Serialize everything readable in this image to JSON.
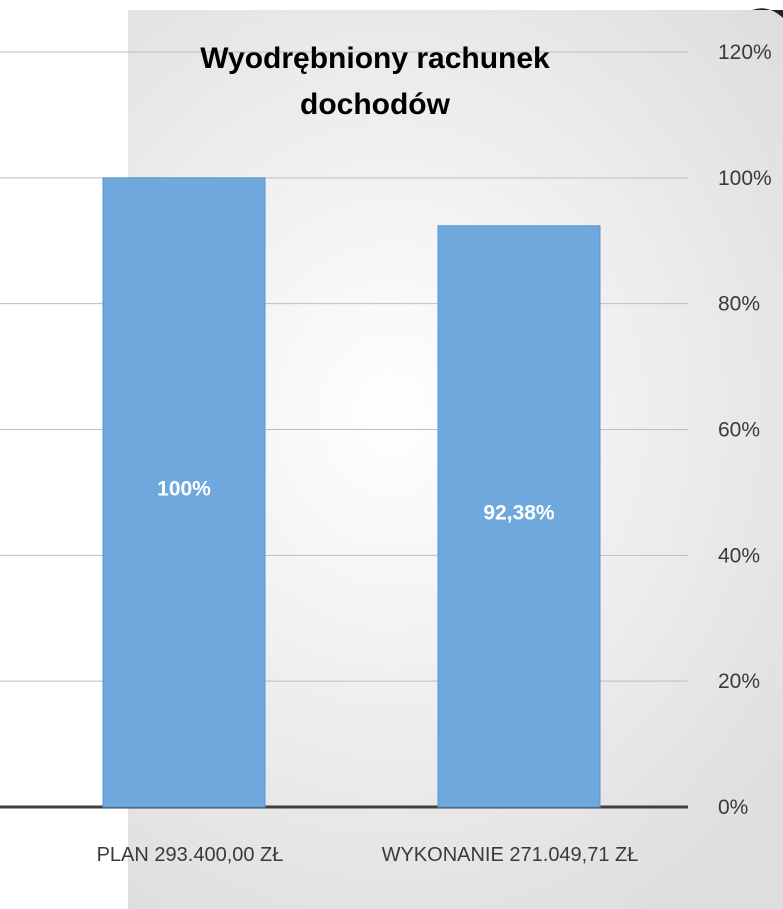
{
  "chart_data": {
    "type": "bar",
    "title": "Wyodrębniony rachunek dochodów",
    "categories": [
      "PLAN 293.400,00  ZŁ",
      "WYKONANIE 271.049,71 ZŁ"
    ],
    "values": [
      100,
      92.38
    ],
    "data_labels": [
      "100%",
      "92,38%"
    ],
    "y_tick_labels": [
      "0%",
      "20%",
      "40%",
      "60%",
      "80%",
      "100%",
      "120%"
    ],
    "y_ticks": [
      0,
      20,
      40,
      60,
      80,
      100,
      120
    ],
    "ylim": [
      0,
      120
    ],
    "ylabel": "",
    "xlabel": "",
    "grid": true,
    "y_axis_position": "right",
    "colors": {
      "bar": "#6fa8dc",
      "bar_edge": "#5b95cc",
      "grid": "#bfbfbf",
      "axis": "#404040",
      "background_center": "#ffffff",
      "background_edge": "#dedede"
    }
  }
}
